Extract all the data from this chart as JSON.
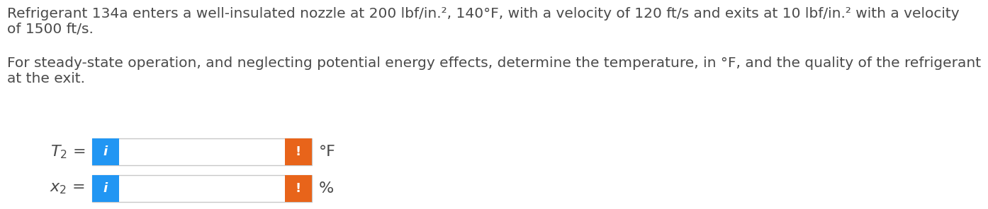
{
  "line1": "Refrigerant 134a enters a well-insulated nozzle at 200 lbf/in.², 140°F, with a velocity of 120 ft/s and exits at 10 lbf/in.² with a velocity",
  "line2": "of 1500 ft/s.",
  "line3": "For steady-state operation, and neglecting potential energy effects, determine the temperature, in °F, and the quality of the refrigerant",
  "line4": "at the exit.",
  "unit1": "°F",
  "unit2": "%",
  "blue_color": "#2196F3",
  "orange_color": "#E8641A",
  "box_fill": "#FFFFFF",
  "box_edge": "#C8C8C8",
  "text_color": "#4A4A4A",
  "bg_color": "#FFFFFF",
  "blue_icon": "i",
  "orange_icon": "!",
  "text_fontsize": 14.5,
  "label_fontsize": 16,
  "icon_fontsize": 13
}
